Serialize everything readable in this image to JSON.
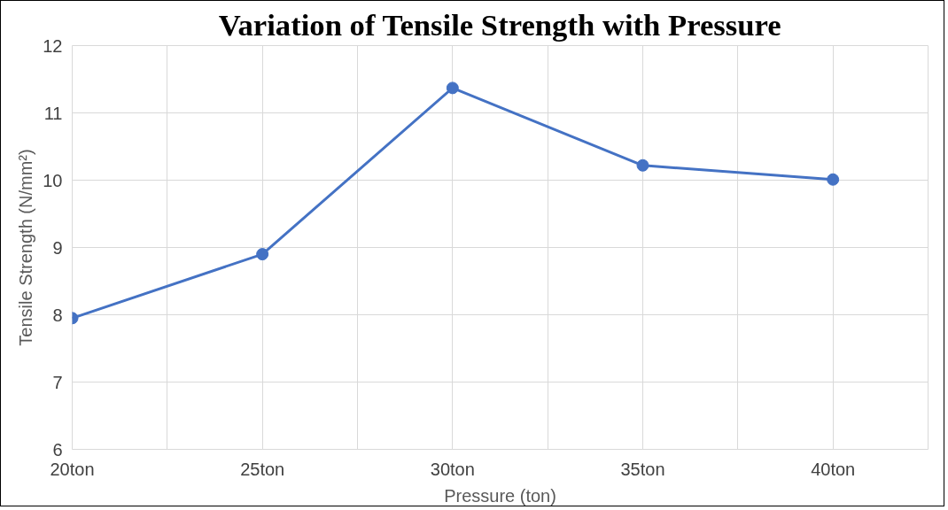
{
  "chart_data": {
    "type": "line",
    "title": "Variation of Tensile Strength with Pressure",
    "xlabel": "Pressure (ton)",
    "ylabel": "Tensile Strength (N/mm²)",
    "categories": [
      "20ton",
      "25ton",
      "30ton",
      "35ton",
      "40ton"
    ],
    "series": [
      {
        "color": "#4472c4",
        "values": [
          7.95,
          8.9,
          11.37,
          10.22,
          10.01
        ]
      }
    ],
    "ylim": [
      6,
      12
    ],
    "yticks": [
      6,
      7,
      8,
      9,
      10,
      11,
      12
    ],
    "grid": true,
    "marker": "circle",
    "line_style": "solid"
  }
}
